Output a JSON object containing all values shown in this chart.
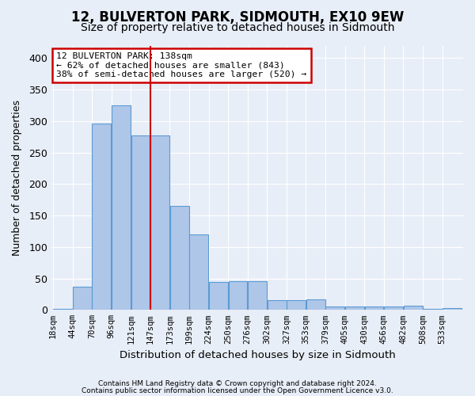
{
  "title": "12, BULVERTON PARK, SIDMOUTH, EX10 9EW",
  "subtitle": "Size of property relative to detached houses in Sidmouth",
  "xlabel": "Distribution of detached houses by size in Sidmouth",
  "ylabel": "Number of detached properties",
  "footer1": "Contains HM Land Registry data © Crown copyright and database right 2024.",
  "footer2": "Contains public sector information licensed under the Open Government Licence v3.0.",
  "bar_labels": [
    "18sqm",
    "44sqm",
    "70sqm",
    "96sqm",
    "121sqm",
    "147sqm",
    "173sqm",
    "199sqm",
    "224sqm",
    "250sqm",
    "276sqm",
    "302sqm",
    "327sqm",
    "353sqm",
    "379sqm",
    "405sqm",
    "430sqm",
    "456sqm",
    "482sqm",
    "508sqm",
    "533sqm"
  ],
  "bar_values": [
    2,
    37,
    296,
    325,
    277,
    277,
    165,
    120,
    44,
    46,
    46,
    15,
    16,
    17,
    5,
    6,
    5,
    5,
    7,
    2,
    3
  ],
  "bar_color": "#aec6e8",
  "bar_edge_color": "#5b9bd5",
  "vline_color": "#cc0000",
  "annotation_text1": "12 BULVERTON PARK: 138sqm",
  "annotation_text2": "← 62% of detached houses are smaller (843)",
  "annotation_text3": "38% of semi-detached houses are larger (520) →",
  "annotation_box_color": "#ffffff",
  "annotation_border_color": "#cc0000",
  "ylim": [
    0,
    420
  ],
  "background_color": "#e8eef7",
  "grid_color": "#ffffff"
}
